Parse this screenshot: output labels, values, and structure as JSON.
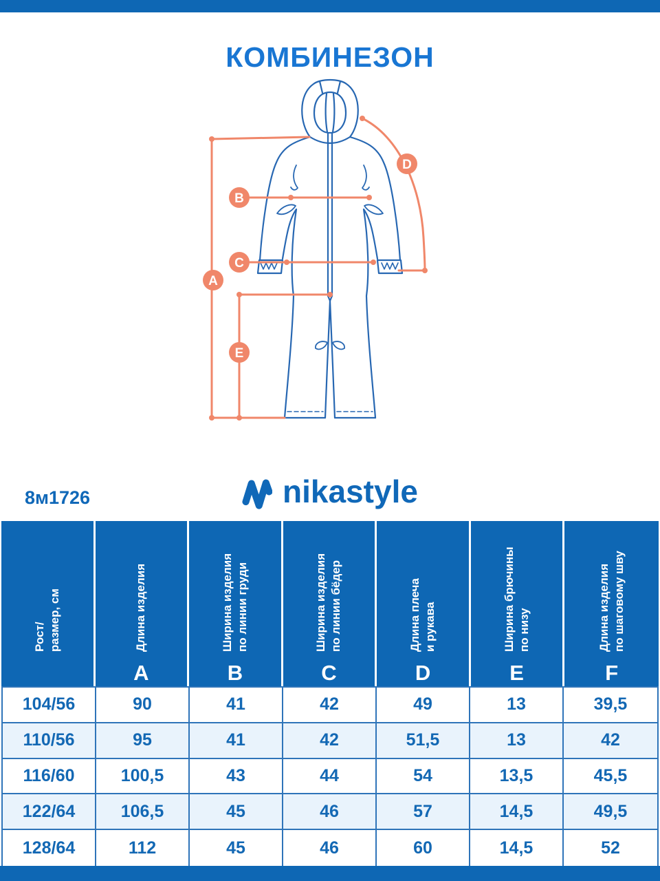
{
  "page": {
    "bar_color": "#0e67b4",
    "background": "#ffffff"
  },
  "title": "КОМБИНЕЗОН",
  "product_code": "8м1726",
  "brand": {
    "logo_text": "nikastyle",
    "logo_color": "#1068b8"
  },
  "diagram": {
    "description": "front view line drawing of a kids hooded coverall with measurement lines",
    "garment_line_color": "#2767b2",
    "measure_color": "#f0876a",
    "markers": [
      "A",
      "B",
      "C",
      "D",
      "E"
    ]
  },
  "size_table": {
    "header_bg": "#0e67b4",
    "header_text_color": "#ffffff",
    "alt_row_bg": "#e9f3fc",
    "value_text_color": "#1368b4",
    "border_color": "#2e74b9",
    "columns": [
      {
        "line1": "Рост/",
        "line2": "размер, см",
        "letter": ""
      },
      {
        "line1": "Длина изделия",
        "line2": "",
        "letter": "A"
      },
      {
        "line1": "Ширина изделия",
        "line2": "по линии груди",
        "letter": "B"
      },
      {
        "line1": "Ширина изделия",
        "line2": "по линии бёдер",
        "letter": "C"
      },
      {
        "line1": "Длина плеча",
        "line2": "и рукава",
        "letter": "D"
      },
      {
        "line1": "Ширина брючины",
        "line2": "по низу",
        "letter": "E"
      },
      {
        "line1": "Длина изделия",
        "line2": "по шаговому шву",
        "letter": "F"
      }
    ],
    "rows": [
      [
        "104/56",
        "90",
        "41",
        "42",
        "49",
        "13",
        "39,5"
      ],
      [
        "110/56",
        "95",
        "41",
        "42",
        "51,5",
        "13",
        "42"
      ],
      [
        "116/60",
        "100,5",
        "43",
        "44",
        "54",
        "13,5",
        "45,5"
      ],
      [
        "122/64",
        "106,5",
        "45",
        "46",
        "57",
        "14,5",
        "49,5"
      ],
      [
        "128/64",
        "112",
        "45",
        "46",
        "60",
        "14,5",
        "52"
      ]
    ]
  }
}
